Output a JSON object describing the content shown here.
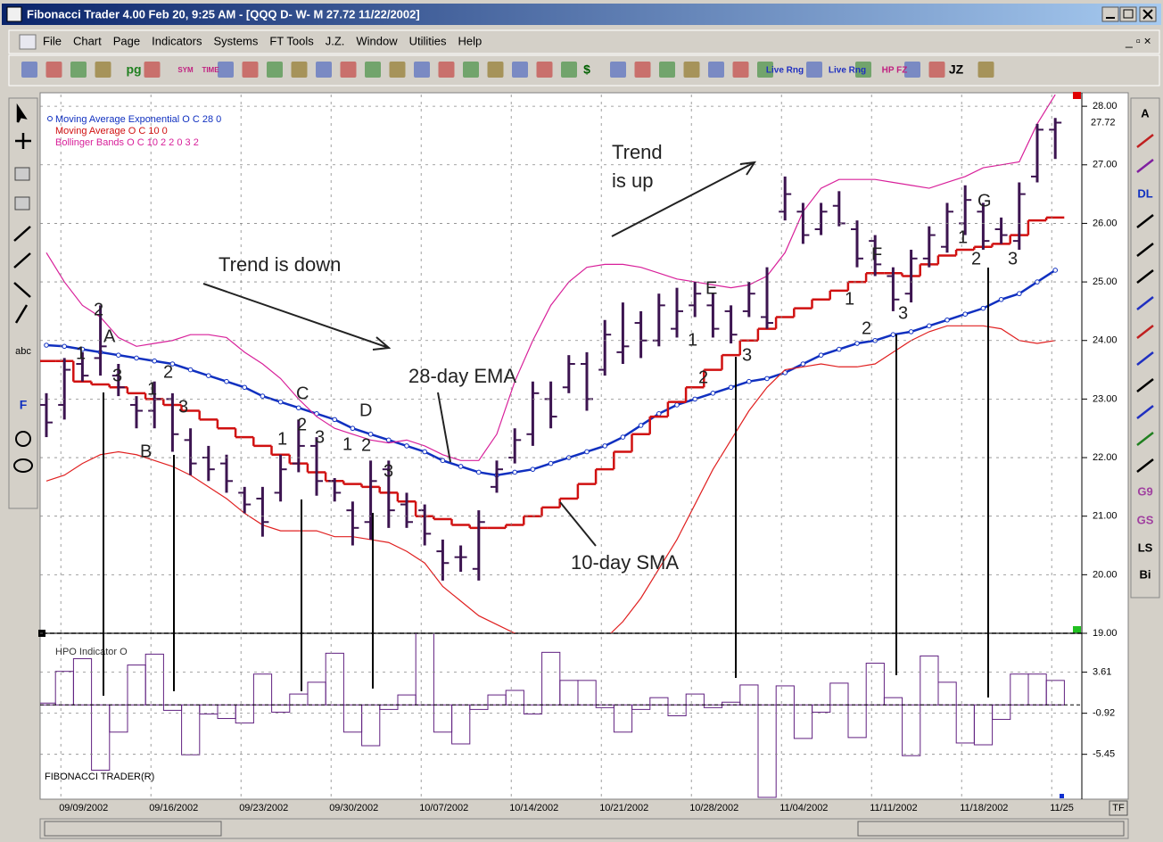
{
  "window": {
    "title": "Fibonacci Trader 4.00 Feb 20,  9:25 AM - [QQQ D- W- M 27.72 11/22/2002]",
    "menu": [
      "File",
      "Chart",
      "Page",
      "Indicators",
      "Systems",
      "FT Tools",
      "J.Z.",
      "Window",
      "Utilities",
      "Help"
    ],
    "toolbar": [
      "pg",
      "SYM",
      "TIME",
      "$",
      "Live Rng",
      "Live Rng",
      "HP FZ",
      "JZ"
    ],
    "left_tools": [
      "abc",
      "F"
    ],
    "right_tools": [
      "A",
      "DL",
      "LS",
      "Bi",
      "G9",
      "GS"
    ],
    "tf": "TF"
  },
  "chart_data": [
    {
      "type": "ohlc",
      "categories": [
        null,
        "09/09/2002",
        null,
        null,
        null,
        null,
        "09/16/2002",
        null,
        null,
        null,
        null,
        "09/23/2002",
        null,
        null,
        null,
        null,
        "09/30/2002",
        null,
        null,
        null,
        null,
        "10/07/2002",
        null,
        null,
        null,
        null,
        "10/14/2002",
        null,
        null,
        null,
        null,
        "10/21/2002",
        null,
        null,
        null,
        null,
        "10/28/2002",
        null,
        null,
        null,
        null,
        "11/04/2002",
        null,
        null,
        null,
        null,
        "11/11/2002",
        null,
        null,
        null,
        null,
        "11/18/2002",
        null,
        null,
        null,
        null,
        "11/25"
      ],
      "open": [
        22.9,
        22.9,
        23.6,
        23.7,
        23.4,
        22.9,
        22.8,
        23.0,
        22.3,
        22.0,
        21.9,
        21.4,
        21.3,
        21.4,
        21.9,
        22.2,
        21.6,
        21.1,
        20.9,
        21.8,
        21.2,
        21.1,
        20.4,
        20.3,
        20.1,
        21.5,
        22.0,
        22.4,
        23.0,
        23.2,
        23.6,
        23.5,
        23.8,
        24.3,
        24.0,
        24.2,
        24.6,
        24.6,
        24.5,
        24.5,
        24.4,
        26.2,
        26.2,
        25.9,
        26.3,
        25.9,
        25.7,
        25.1,
        24.8,
        25.4,
        25.6,
        26.0,
        26.2,
        25.9,
        25.7,
        26.8,
        27.6
      ],
      "high": [
        23.1,
        23.7,
        23.8,
        24.6,
        23.6,
        23.05,
        23.3,
        23.1,
        22.5,
        22.2,
        22.05,
        21.5,
        21.5,
        22.05,
        22.65,
        22.35,
        21.65,
        21.25,
        21.95,
        21.95,
        21.4,
        21.2,
        20.6,
        20.5,
        21.1,
        21.95,
        22.5,
        23.3,
        23.3,
        23.75,
        23.8,
        24.35,
        24.65,
        24.5,
        24.8,
        24.9,
        25.0,
        24.8,
        24.6,
        25.0,
        25.25,
        26.8,
        26.35,
        26.35,
        26.55,
        26.05,
        25.8,
        25.25,
        25.55,
        25.95,
        26.35,
        26.65,
        26.35,
        26.1,
        26.7,
        27.7,
        27.8
      ],
      "low": [
        22.35,
        22.65,
        23.3,
        23.4,
        23.05,
        22.5,
        22.5,
        22.1,
        21.7,
        21.6,
        21.4,
        21.05,
        20.65,
        21.25,
        21.75,
        21.35,
        21.25,
        20.5,
        20.6,
        20.8,
        20.8,
        20.5,
        19.9,
        20.05,
        19.9,
        21.4,
        21.9,
        22.2,
        22.5,
        23.1,
        22.8,
        23.4,
        23.6,
        23.7,
        23.9,
        24.05,
        24.4,
        24.05,
        23.95,
        24.4,
        24.2,
        26.05,
        25.65,
        25.8,
        25.95,
        25.25,
        25.1,
        24.5,
        24.65,
        25.25,
        25.5,
        25.8,
        25.55,
        25.65,
        25.55,
        26.7,
        27.1
      ],
      "close": [
        22.6,
        23.5,
        23.4,
        23.9,
        23.2,
        22.8,
        23.0,
        22.4,
        21.9,
        21.8,
        21.6,
        21.2,
        20.9,
        21.8,
        22.2,
        21.6,
        21.4,
        20.8,
        21.6,
        21.1,
        20.9,
        20.7,
        20.2,
        20.3,
        20.9,
        21.8,
        22.3,
        23.1,
        22.7,
        23.6,
        23.0,
        24.1,
        23.9,
        24.0,
        24.6,
        24.5,
        24.8,
        24.2,
        24.1,
        24.8,
        24.3,
        26.5,
        25.8,
        26.2,
        26.0,
        25.4,
        25.3,
        24.7,
        25.4,
        25.8,
        26.2,
        26.4,
        25.7,
        25.8,
        26.5,
        27.6,
        27.72
      ],
      "color": "#3c1450",
      "last_value": 27.72,
      "series": [
        {
          "name": "Moving Average Exponential O C 28 0",
          "color": "#1030c0",
          "style": "dots",
          "values": [
            23.92,
            23.9,
            23.85,
            23.8,
            23.75,
            23.7,
            23.65,
            23.6,
            23.5,
            23.4,
            23.3,
            23.2,
            23.05,
            22.95,
            22.85,
            22.75,
            22.65,
            22.5,
            22.4,
            22.3,
            22.2,
            22.1,
            21.95,
            21.85,
            21.75,
            21.7,
            21.75,
            21.8,
            21.9,
            22.0,
            22.1,
            22.2,
            22.35,
            22.55,
            22.75,
            22.9,
            23.0,
            23.1,
            23.2,
            23.3,
            23.35,
            23.45,
            23.6,
            23.75,
            23.85,
            23.95,
            24.0,
            24.1,
            24.15,
            24.25,
            24.35,
            24.45,
            24.55,
            24.7,
            24.8,
            25.0,
            25.2
          ]
        },
        {
          "name": "Moving Average O C 10 0",
          "color": "#d01010",
          "style": "step",
          "values": [
            23.65,
            23.65,
            23.3,
            23.25,
            23.2,
            23.1,
            23.0,
            22.9,
            22.8,
            22.65,
            22.5,
            22.35,
            22.2,
            22.05,
            21.9,
            21.75,
            21.6,
            21.55,
            21.5,
            21.4,
            21.25,
            21.0,
            20.95,
            20.85,
            20.8,
            20.8,
            20.85,
            21.0,
            21.15,
            21.3,
            21.55,
            21.8,
            22.1,
            22.4,
            22.7,
            22.95,
            23.2,
            23.5,
            23.75,
            24.0,
            24.2,
            24.4,
            24.55,
            24.7,
            24.85,
            25.0,
            25.15,
            25.15,
            25.1,
            25.3,
            25.45,
            25.55,
            25.6,
            25.65,
            25.8,
            26.05,
            26.1
          ]
        },
        {
          "name": "Bollinger Bands O C 10 2 2 0 3 2",
          "color": "#d8209a",
          "style": "line",
          "values": [
            25.5,
            25.0,
            24.6,
            24.4,
            24.05,
            23.9,
            23.95,
            24.0,
            24.1,
            24.1,
            24.05,
            23.8,
            23.6,
            23.35,
            23.0,
            22.7,
            22.5,
            22.4,
            22.3,
            22.25,
            22.3,
            22.2,
            22.05,
            21.95,
            21.95,
            22.4,
            23.3,
            24.0,
            24.6,
            25.0,
            25.25,
            25.3,
            25.3,
            25.25,
            25.15,
            25.05,
            25.0,
            24.95,
            24.9,
            24.95,
            25.1,
            25.5,
            26.2,
            26.6,
            26.75,
            26.75,
            26.75,
            26.7,
            26.65,
            26.6,
            26.7,
            26.8,
            26.95,
            27.0,
            27.05,
            27.7,
            28.2
          ]
        },
        {
          "color": "#e02020",
          "style": "line",
          "values": [
            21.6,
            21.7,
            21.9,
            22.05,
            22.1,
            22.05,
            21.95,
            21.85,
            21.7,
            21.5,
            21.3,
            21.05,
            20.85,
            20.75,
            20.75,
            20.75,
            20.65,
            20.65,
            20.6,
            20.55,
            20.4,
            20.2,
            19.8,
            19.55,
            19.3,
            19.15,
            19.0,
            18.8,
            18.7,
            18.7,
            18.8,
            18.9,
            19.2,
            19.6,
            20.1,
            20.6,
            21.2,
            21.8,
            22.3,
            22.8,
            23.2,
            23.5,
            23.55,
            23.6,
            23.55,
            23.55,
            23.6,
            23.8,
            24.0,
            24.15,
            24.25,
            24.25,
            24.25,
            24.2,
            24.0,
            23.95,
            24.0
          ]
        }
      ],
      "ylim": [
        19,
        28.2
      ],
      "yticks": [
        {
          "value": 28,
          "label": "28.00"
        },
        {
          "value": 27,
          "label": "27.00"
        },
        {
          "value": 26,
          "label": "26.00"
        },
        {
          "value": 25,
          "label": "25.00"
        },
        {
          "value": 24,
          "label": "24.00"
        },
        {
          "value": 23,
          "label": "23.00"
        },
        {
          "value": 22,
          "label": "22.00"
        },
        {
          "value": 21,
          "label": "21.00"
        },
        {
          "value": 20,
          "label": "20.00"
        },
        {
          "value": 19,
          "label": "19.00"
        }
      ],
      "grid": true,
      "annotations": [
        "Trend is down",
        "Trend",
        "is up",
        "28-day EMA",
        "10-day SMA"
      ],
      "wave_labels": [
        "2",
        "A",
        "1",
        "3",
        "2",
        "1",
        "3",
        "B",
        "C",
        "2",
        "1",
        "3",
        "D",
        "1",
        "2",
        "3",
        "E",
        "1",
        "2",
        "3",
        "1",
        "F",
        "2",
        "3",
        "G",
        "1",
        "2",
        "3"
      ]
    },
    {
      "type": "bar",
      "title": "HPO Indicator O",
      "watermark": "FIBONACCI TRADER(R)",
      "color": "#602080",
      "values": [
        0.2,
        3.7,
        5.1,
        -7.2,
        -3.0,
        4.4,
        5.6,
        -0.6,
        -5.5,
        -1.0,
        -1.5,
        -2.0,
        3.4,
        -0.8,
        1.2,
        2.5,
        5.7,
        -3.0,
        -4.5,
        -0.5,
        1.1,
        8.0,
        -3.0,
        -4.3,
        -0.5,
        1.1,
        1.6,
        -1.0,
        5.8,
        2.7,
        2.7,
        -0.3,
        -3.0,
        -0.5,
        0.8,
        -1.2,
        1.2,
        -0.3,
        0.3,
        2.2,
        -10.2,
        2.1,
        -3.7,
        -0.8,
        2.4,
        -3.6,
        4.6,
        0.8,
        -5.6,
        5.4,
        2.5,
        -4.2,
        -4.4,
        -1.6,
        3.4,
        3.4,
        2.7
      ],
      "ylim": [
        -10.4,
        7.9
      ],
      "yticks": [
        3.61,
        -0.92,
        -5.45
      ],
      "grid": true
    }
  ]
}
